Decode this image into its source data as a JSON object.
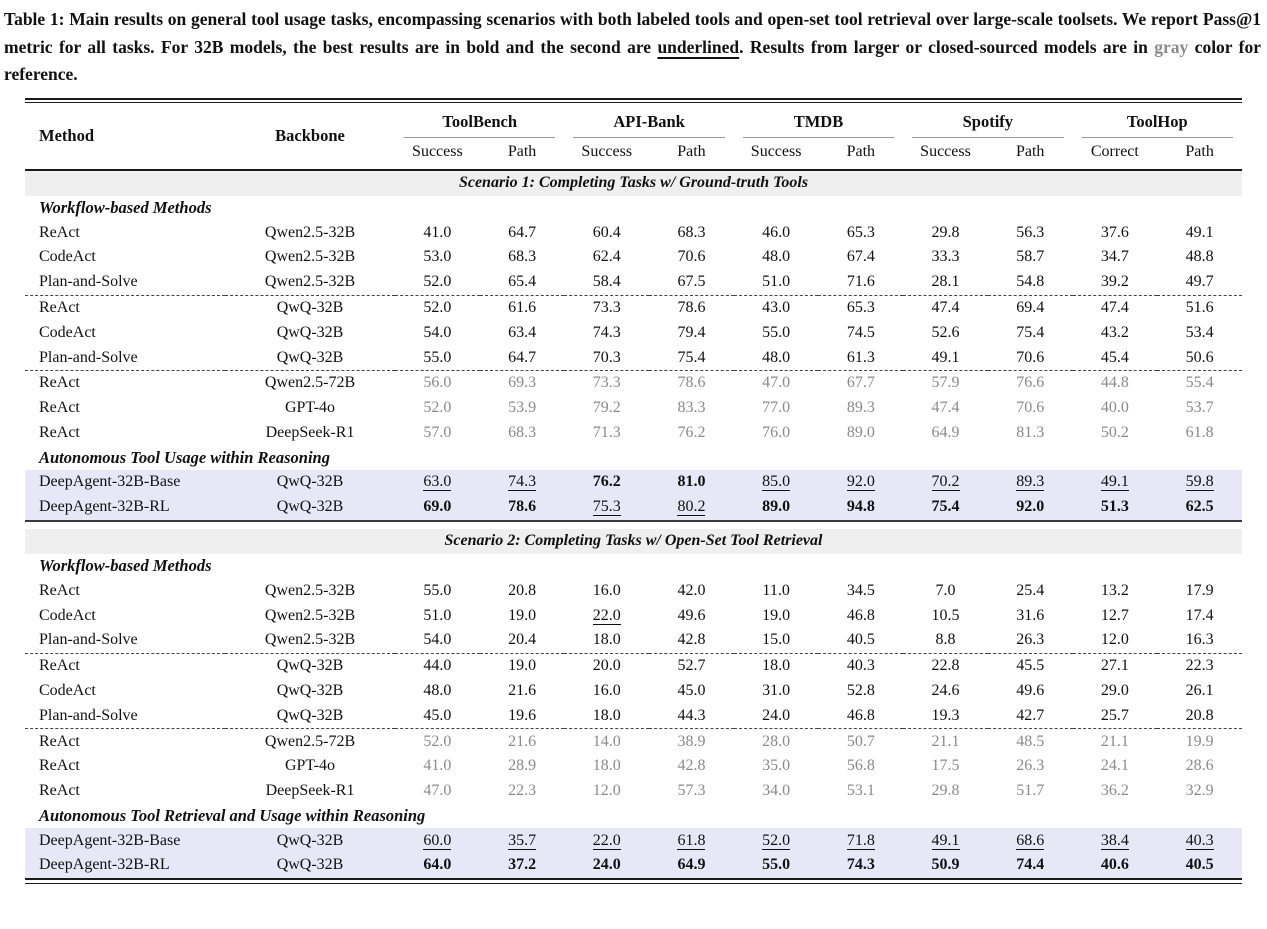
{
  "colors": {
    "highlight_row": "#e7e7f8",
    "scenario_band": "#efefef",
    "gray_text": "#8a8a8a",
    "rule": "#1a1a1a",
    "cmidrule": "#999999"
  },
  "caption": {
    "segments": [
      {
        "text": "Table 1: Main results on general tool usage tasks, encompassing scenarios with both labeled tools and open-set tool retrieval over large-scale toolsets. We report Pass@1 metric for all tasks. For 32B models, the best results are in bold and the second are ",
        "style": "normal"
      },
      {
        "text": "underlined",
        "style": "underline"
      },
      {
        "text": ". Results from larger or closed-sourced models are in ",
        "style": "normal"
      },
      {
        "text": "gray",
        "style": "gray"
      },
      {
        "text": " color for reference.",
        "style": "normal"
      }
    ]
  },
  "table": {
    "col_headers": {
      "method": "Method",
      "backbone": "Backbone",
      "groups": [
        {
          "label": "ToolBench",
          "sub": [
            "Success",
            "Path"
          ]
        },
        {
          "label": "API-Bank",
          "sub": [
            "Success",
            "Path"
          ]
        },
        {
          "label": "TMDB",
          "sub": [
            "Success",
            "Path"
          ]
        },
        {
          "label": "Spotify",
          "sub": [
            "Success",
            "Path"
          ]
        },
        {
          "label": "ToolHop",
          "sub": [
            "Correct",
            "Path"
          ]
        }
      ]
    },
    "sections": [
      {
        "title": "Scenario 1: Completing Tasks w/ Ground-truth Tools",
        "blocks": [
          {
            "type": "group_label",
            "text": "Workflow-based Methods"
          },
          {
            "type": "row",
            "method": "ReAct",
            "backbone": "Qwen2.5-32B",
            "values": [
              "41.0",
              "64.7",
              "60.4",
              "68.3",
              "46.0",
              "65.3",
              "29.8",
              "56.3",
              "37.6",
              "49.1"
            ],
            "styles": "nnnnnnnnnn",
            "gray": false,
            "highlight": false,
            "dashed_after": false
          },
          {
            "type": "row",
            "method": "CodeAct",
            "backbone": "Qwen2.5-32B",
            "values": [
              "53.0",
              "68.3",
              "62.4",
              "70.6",
              "48.0",
              "67.4",
              "33.3",
              "58.7",
              "34.7",
              "48.8"
            ],
            "styles": "nnnnnnnnnn",
            "gray": false,
            "highlight": false,
            "dashed_after": false
          },
          {
            "type": "row",
            "method": "Plan-and-Solve",
            "backbone": "Qwen2.5-32B",
            "values": [
              "52.0",
              "65.4",
              "58.4",
              "67.5",
              "51.0",
              "71.6",
              "28.1",
              "54.8",
              "39.2",
              "49.7"
            ],
            "styles": "nnnnnnnnnn",
            "gray": false,
            "highlight": false,
            "dashed_after": true
          },
          {
            "type": "row",
            "method": "ReAct",
            "backbone": "QwQ-32B",
            "values": [
              "52.0",
              "61.6",
              "73.3",
              "78.6",
              "43.0",
              "65.3",
              "47.4",
              "69.4",
              "47.4",
              "51.6"
            ],
            "styles": "nnnnnnnnnn",
            "gray": false,
            "highlight": false,
            "dashed_after": false
          },
          {
            "type": "row",
            "method": "CodeAct",
            "backbone": "QwQ-32B",
            "values": [
              "54.0",
              "63.4",
              "74.3",
              "79.4",
              "55.0",
              "74.5",
              "52.6",
              "75.4",
              "43.2",
              "53.4"
            ],
            "styles": "nnnnnnnnnn",
            "gray": false,
            "highlight": false,
            "dashed_after": false
          },
          {
            "type": "row",
            "method": "Plan-and-Solve",
            "backbone": "QwQ-32B",
            "values": [
              "55.0",
              "64.7",
              "70.3",
              "75.4",
              "48.0",
              "61.3",
              "49.1",
              "70.6",
              "45.4",
              "50.6"
            ],
            "styles": "nnnnnnnnnn",
            "gray": false,
            "highlight": false,
            "dashed_after": true
          },
          {
            "type": "row",
            "method": "ReAct",
            "backbone": "Qwen2.5-72B",
            "values": [
              "56.0",
              "69.3",
              "73.3",
              "78.6",
              "47.0",
              "67.7",
              "57.9",
              "76.6",
              "44.8",
              "55.4"
            ],
            "styles": "nnnnnnnnnn",
            "gray": true,
            "highlight": false,
            "dashed_after": false
          },
          {
            "type": "row",
            "method": "ReAct",
            "backbone": "GPT-4o",
            "values": [
              "52.0",
              "53.9",
              "79.2",
              "83.3",
              "77.0",
              "89.3",
              "47.4",
              "70.6",
              "40.0",
              "53.7"
            ],
            "styles": "nnnnnnnnnn",
            "gray": true,
            "highlight": false,
            "dashed_after": false
          },
          {
            "type": "row",
            "method": "ReAct",
            "backbone": "DeepSeek-R1",
            "values": [
              "57.0",
              "68.3",
              "71.3",
              "76.2",
              "76.0",
              "89.0",
              "64.9",
              "81.3",
              "50.2",
              "61.8"
            ],
            "styles": "nnnnnnnnnn",
            "gray": true,
            "highlight": false,
            "dashed_after": false
          },
          {
            "type": "group_label",
            "text": "Autonomous Tool Usage within Reasoning"
          },
          {
            "type": "row",
            "method": "DeepAgent-32B-Base",
            "backbone": "QwQ-32B",
            "values": [
              "63.0",
              "74.3",
              "76.2",
              "81.0",
              "85.0",
              "92.0",
              "70.2",
              "89.3",
              "49.1",
              "59.8"
            ],
            "styles": "uubbuuuuuu",
            "gray": false,
            "highlight": true,
            "dashed_after": false
          },
          {
            "type": "row",
            "method": "DeepAgent-32B-RL",
            "backbone": "QwQ-32B",
            "values": [
              "69.0",
              "78.6",
              "75.3",
              "80.2",
              "89.0",
              "94.8",
              "75.4",
              "92.0",
              "51.3",
              "62.5"
            ],
            "styles": "bbuubbbbbb",
            "gray": false,
            "highlight": true,
            "dashed_after": false
          }
        ]
      },
      {
        "title": "Scenario 2: Completing Tasks w/ Open-Set Tool Retrieval",
        "blocks": [
          {
            "type": "group_label",
            "text": "Workflow-based Methods"
          },
          {
            "type": "row",
            "method": "ReAct",
            "backbone": "Qwen2.5-32B",
            "values": [
              "55.0",
              "20.8",
              "16.0",
              "42.0",
              "11.0",
              "34.5",
              "7.0",
              "25.4",
              "13.2",
              "17.9"
            ],
            "styles": "nnnnnnnnnn",
            "gray": false,
            "highlight": false,
            "dashed_after": false
          },
          {
            "type": "row",
            "method": "CodeAct",
            "backbone": "Qwen2.5-32B",
            "values": [
              "51.0",
              "19.0",
              "22.0",
              "49.6",
              "19.0",
              "46.8",
              "10.5",
              "31.6",
              "12.7",
              "17.4"
            ],
            "styles": "nnunnnnnnn",
            "gray": false,
            "highlight": false,
            "dashed_after": false
          },
          {
            "type": "row",
            "method": "Plan-and-Solve",
            "backbone": "Qwen2.5-32B",
            "values": [
              "54.0",
              "20.4",
              "18.0",
              "42.8",
              "15.0",
              "40.5",
              "8.8",
              "26.3",
              "12.0",
              "16.3"
            ],
            "styles": "nnnnnnnnnn",
            "gray": false,
            "highlight": false,
            "dashed_after": true
          },
          {
            "type": "row",
            "method": "ReAct",
            "backbone": "QwQ-32B",
            "values": [
              "44.0",
              "19.0",
              "20.0",
              "52.7",
              "18.0",
              "40.3",
              "22.8",
              "45.5",
              "27.1",
              "22.3"
            ],
            "styles": "nnnnnnnnnn",
            "gray": false,
            "highlight": false,
            "dashed_after": false
          },
          {
            "type": "row",
            "method": "CodeAct",
            "backbone": "QwQ-32B",
            "values": [
              "48.0",
              "21.6",
              "16.0",
              "45.0",
              "31.0",
              "52.8",
              "24.6",
              "49.6",
              "29.0",
              "26.1"
            ],
            "styles": "nnnnnnnnnn",
            "gray": false,
            "highlight": false,
            "dashed_after": false
          },
          {
            "type": "row",
            "method": "Plan-and-Solve",
            "backbone": "QwQ-32B",
            "values": [
              "45.0",
              "19.6",
              "18.0",
              "44.3",
              "24.0",
              "46.8",
              "19.3",
              "42.7",
              "25.7",
              "20.8"
            ],
            "styles": "nnnnnnnnnn",
            "gray": false,
            "highlight": false,
            "dashed_after": true
          },
          {
            "type": "row",
            "method": "ReAct",
            "backbone": "Qwen2.5-72B",
            "values": [
              "52.0",
              "21.6",
              "14.0",
              "38.9",
              "28.0",
              "50.7",
              "21.1",
              "48.5",
              "21.1",
              "19.9"
            ],
            "styles": "nnnnnnnnnn",
            "gray": true,
            "highlight": false,
            "dashed_after": false
          },
          {
            "type": "row",
            "method": "ReAct",
            "backbone": "GPT-4o",
            "values": [
              "41.0",
              "28.9",
              "18.0",
              "42.8",
              "35.0",
              "56.8",
              "17.5",
              "26.3",
              "24.1",
              "28.6"
            ],
            "styles": "nnnnnnnnnn",
            "gray": true,
            "highlight": false,
            "dashed_after": false
          },
          {
            "type": "row",
            "method": "ReAct",
            "backbone": "DeepSeek-R1",
            "values": [
              "47.0",
              "22.3",
              "12.0",
              "57.3",
              "34.0",
              "53.1",
              "29.8",
              "51.7",
              "36.2",
              "32.9"
            ],
            "styles": "nnnnnnnnnn",
            "gray": true,
            "highlight": false,
            "dashed_after": false
          },
          {
            "type": "group_label",
            "text": "Autonomous Tool Retrieval and Usage within Reasoning"
          },
          {
            "type": "row",
            "method": "DeepAgent-32B-Base",
            "backbone": "QwQ-32B",
            "values": [
              "60.0",
              "35.7",
              "22.0",
              "61.8",
              "52.0",
              "71.8",
              "49.1",
              "68.6",
              "38.4",
              "40.3"
            ],
            "styles": "uuuuuuuuuu",
            "gray": false,
            "highlight": true,
            "dashed_after": false
          },
          {
            "type": "row",
            "method": "DeepAgent-32B-RL",
            "backbone": "QwQ-32B",
            "values": [
              "64.0",
              "37.2",
              "24.0",
              "64.9",
              "55.0",
              "74.3",
              "50.9",
              "74.4",
              "40.6",
              "40.5"
            ],
            "styles": "bbbbbbbbbb",
            "gray": false,
            "highlight": true,
            "dashed_after": false
          }
        ]
      }
    ]
  }
}
